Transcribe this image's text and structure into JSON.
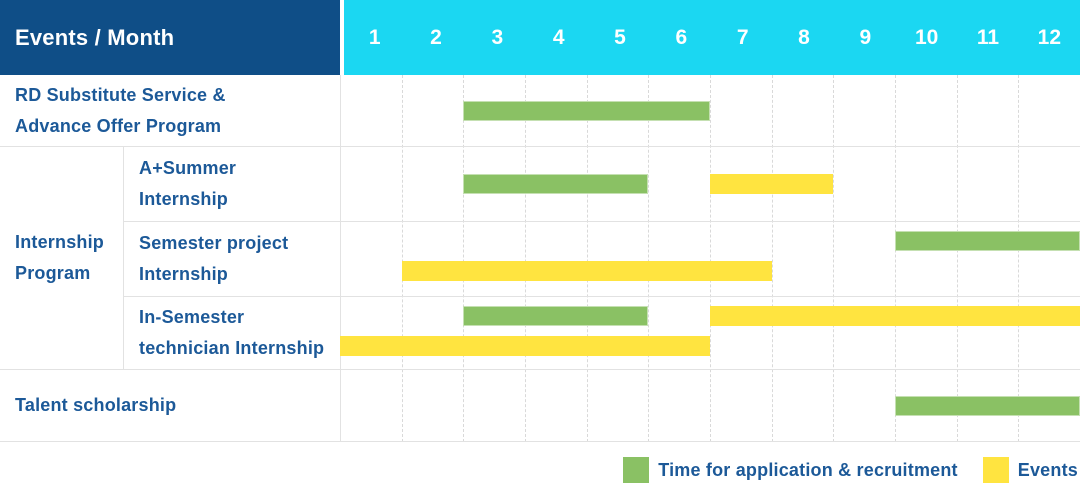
{
  "header": {
    "title": "Events / Month",
    "months": [
      "1",
      "2",
      "3",
      "4",
      "5",
      "6",
      "7",
      "8",
      "9",
      "10",
      "11",
      "12"
    ],
    "bg_left": "#0f4e87",
    "bg_right": "#1bd7f2",
    "text_color": "#ffffff"
  },
  "colors": {
    "label_text": "#1c5998",
    "application_bar": "#8ac164",
    "events_bar": "#ffe440",
    "grid_line": "#d9d9d9",
    "row_border": "#e2e2e2"
  },
  "rows": [
    {
      "label": "RD Substitute Service &\nAdvance Offer Program"
    },
    {
      "group": "Internship\nProgram",
      "label": "A+Summer\nInternship"
    },
    {
      "label": "Semester project\nInternship"
    },
    {
      "label": "In-Semester\ntechnician Internship"
    },
    {
      "label": "Talent scholarship"
    }
  ],
  "legend": {
    "items": [
      {
        "label": "Time for application & recruitment",
        "series": "application",
        "color": "#8ac164"
      },
      {
        "label": "Events",
        "series": "events",
        "color": "#ffe440"
      }
    ]
  },
  "chart_data": {
    "type": "table",
    "subtype": "gantt-timeline",
    "title": "Events / Month",
    "x_axis": {
      "label": "Month",
      "ticks": [
        "1",
        "2",
        "3",
        "4",
        "5",
        "6",
        "7",
        "8",
        "9",
        "10",
        "11",
        "12"
      ],
      "range": [
        1,
        12
      ]
    },
    "legend_position": "bottom-right",
    "series_legend": [
      {
        "name": "Time for application & recruitment",
        "key": "application",
        "color": "#8ac164"
      },
      {
        "name": "Events",
        "key": "events",
        "color": "#ffe440"
      }
    ],
    "rows": [
      {
        "group": "",
        "label": "RD Substitute Service & Advance Offer Program",
        "bars": [
          {
            "series": "application",
            "start_month": 3,
            "end_month": 6,
            "lane": "center"
          }
        ]
      },
      {
        "group": "Internship Program",
        "label": "A+Summer Internship",
        "bars": [
          {
            "series": "application",
            "start_month": 3,
            "end_month": 5,
            "lane": "center"
          },
          {
            "series": "events",
            "start_month": 7,
            "end_month": 8,
            "lane": "center"
          }
        ]
      },
      {
        "group": "Internship Program",
        "label": "Semester project Internship",
        "bars": [
          {
            "series": "application",
            "start_month": 10,
            "end_month": 12,
            "lane": "top"
          },
          {
            "series": "events",
            "start_month": 2,
            "end_month": 7,
            "lane": "bottom"
          }
        ]
      },
      {
        "group": "Internship Program",
        "label": "In-Semester technician Internship",
        "bars": [
          {
            "series": "application",
            "start_month": 3,
            "end_month": 5,
            "lane": "top"
          },
          {
            "series": "events",
            "start_month": 7,
            "end_month": 12,
            "lane": "top"
          },
          {
            "series": "events",
            "start_month": 1,
            "end_month": 6,
            "lane": "bottom"
          }
        ]
      },
      {
        "group": "",
        "label": "Talent scholarship",
        "bars": [
          {
            "series": "application",
            "start_month": 10,
            "end_month": 12,
            "lane": "center"
          }
        ]
      }
    ]
  }
}
